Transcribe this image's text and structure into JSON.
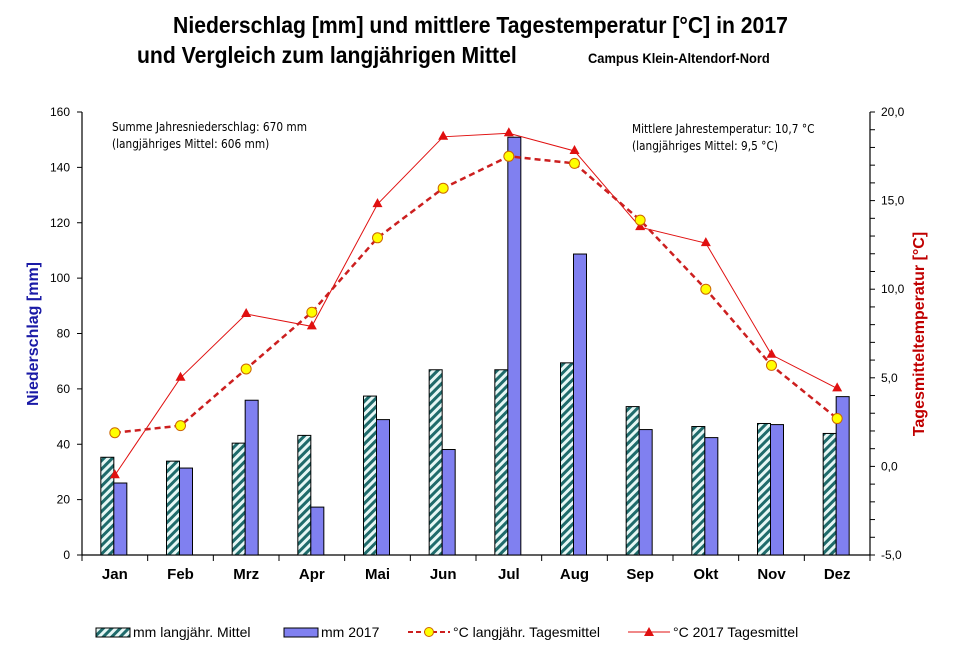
{
  "chart_data": {
    "type": "bar+line",
    "title_line1": "Niederschlag [mm] und mittlere Tagestemperatur [°C] in 2017",
    "title_line2": "und Vergleich zum langjährigen Mittel",
    "subtitle": "Campus Klein-Altendorf-Nord",
    "categories": [
      "Jan",
      "Feb",
      "Mrz",
      "Apr",
      "Mai",
      "Jun",
      "Jul",
      "Aug",
      "Sep",
      "Okt",
      "Nov",
      "Dez"
    ],
    "ylabel_left": "Niederschlag  [mm]",
    "ylabel_right": "Tagesmitteltemperatur  [°C]",
    "ylim_left": [
      0,
      160
    ],
    "yticks_left": [
      "0",
      "20",
      "40",
      "60",
      "80",
      "100",
      "120",
      "140",
      "160"
    ],
    "ylim_right": [
      -5,
      20
    ],
    "yticks_right": [
      "-5,0",
      "0,0",
      "5,0",
      "10,0",
      "15,0",
      "20,0"
    ],
    "grid": false,
    "legend_position": "bottom",
    "annotations": {
      "precip_sum": "Summe Jahresniederschlag:  670 mm",
      "precip_mean": "(langjähriges Mittel:  606 mm)",
      "temp_mean": "Mittlere Jahrestemperatur:  10,7 °C",
      "temp_longterm": "(langjähriges Mittel:  9,5 °C)"
    },
    "series": [
      {
        "name": "mm langjähr. Mittel",
        "type": "bar",
        "axis": "left",
        "color": "#1f6b6b",
        "fill": "#e6f7f5",
        "pattern": "diagonal-hatch",
        "values": [
          35.3,
          33.9,
          40.4,
          43.2,
          57.4,
          66.9,
          66.9,
          69.4,
          53.6,
          46.4,
          47.5,
          43.9
        ]
      },
      {
        "name": "mm 2017",
        "type": "bar",
        "axis": "left",
        "color": "#8080f0",
        "values": [
          26.0,
          31.4,
          55.9,
          17.3,
          48.9,
          38.1,
          150.9,
          108.7,
          45.3,
          42.4,
          47.1,
          57.2
        ]
      },
      {
        "name": "°C langjähr. Tagesmittel",
        "type": "line",
        "axis": "right",
        "color": "#cc1f1f",
        "line_style": "dashed",
        "marker": "circle",
        "marker_fill": "#ffff00",
        "values": [
          1.9,
          2.3,
          5.5,
          8.7,
          12.9,
          15.7,
          17.5,
          17.1,
          13.9,
          10.0,
          5.7,
          2.7
        ]
      },
      {
        "name": "°C 2017 Tagesmittel",
        "type": "line",
        "axis": "right",
        "color": "#e01010",
        "line_style": "solid",
        "marker": "triangle",
        "values": [
          -0.5,
          5.0,
          8.6,
          7.9,
          14.8,
          18.6,
          18.8,
          17.8,
          13.5,
          12.6,
          6.3,
          4.4
        ]
      }
    ]
  }
}
